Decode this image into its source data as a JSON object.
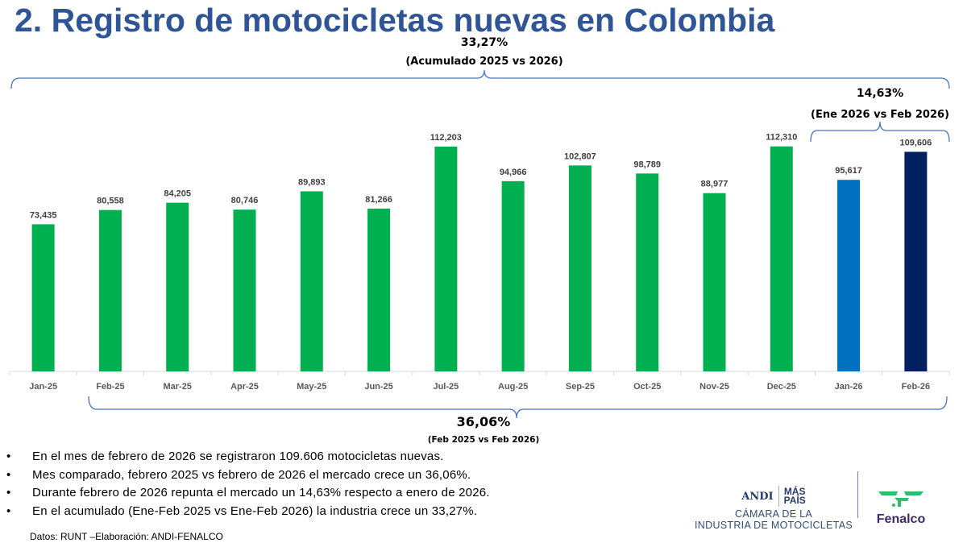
{
  "title": "2. Registro de motocicletas nuevas en Colombia",
  "annotations": {
    "accumulated": {
      "value": "33,27%",
      "label": "(Acumulado 2025 vs 2026)"
    },
    "month_over_month": {
      "value": "14,63%",
      "label": "(Ene 2026 vs Feb 2026)"
    },
    "year_over_year": {
      "value": "36,06%",
      "label": "(Feb 2025 vs Feb 2026)"
    }
  },
  "chart_data": {
    "type": "bar",
    "title": "",
    "xlabel": "",
    "ylabel": "",
    "ylim": [
      0,
      120000
    ],
    "grid": false,
    "categories": [
      "Jan-25",
      "Feb-25",
      "Mar-25",
      "Apr-25",
      "May-25",
      "Jun-25",
      "Jul-25",
      "Aug-25",
      "Sep-25",
      "Oct-25",
      "Nov-25",
      "Dec-25",
      "Jan-26",
      "Feb-26"
    ],
    "values": [
      73435,
      80558,
      84205,
      80746,
      89893,
      81266,
      112203,
      94966,
      102807,
      98789,
      88977,
      112310,
      95617,
      109606
    ],
    "data_labels": [
      "73,435",
      "80,558",
      "84,205",
      "80,746",
      "89,893",
      "81,266",
      "112,203",
      "94,966",
      "102,807",
      "98,789",
      "88,977",
      "112,310",
      "95,617",
      "109,606"
    ],
    "colors": [
      "#00B050",
      "#00B050",
      "#00B050",
      "#00B050",
      "#00B050",
      "#00B050",
      "#00B050",
      "#00B050",
      "#00B050",
      "#00B050",
      "#00B050",
      "#00B050",
      "#0070C0",
      "#002060"
    ]
  },
  "bullets": [
    "En el mes de febrero de 2026 se registraron 109.606 motocicletas nuevas.",
    "Mes comparado, febrero 2025 vs febrero de 2026 el mercado crece un 36,06%.",
    "Durante febrero de 2026 repunta el mercado un 14,63% respecto a enero de 2026.",
    "En el acumulado (Ene-Feb 2025 vs Ene-Feb 2026) la industria crece un 33,27%."
  ],
  "bullet_glyph": "•",
  "source": "Datos: RUNT –Elaboración: ANDI-FENALCO",
  "logos": {
    "andi": "ANDI",
    "mas_pais_1": "MÁS",
    "mas_pais_2": "PAÍS",
    "camara_1": "CÁMARA DE LA",
    "camara_2": "INDUSTRIA DE MOTOCICLETAS",
    "fenalco": "Fenalco"
  }
}
